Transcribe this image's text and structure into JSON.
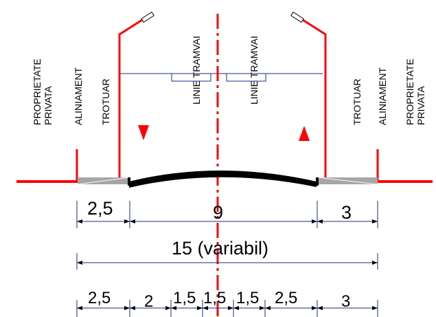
{
  "colors": {
    "red": "#ff0000",
    "road": "#000000",
    "sidewalk": "#a6a6a6",
    "line": "#1a2a8a",
    "background": "#ffffff"
  },
  "left_labels": {
    "proprietate": "PROPRIETATE",
    "privata": "PRIVATA",
    "aliniament": "ALINIAMENT",
    "trotuar": "TROTUAR"
  },
  "right_labels": {
    "proprietate": "PROPRIETATE",
    "privata": "PRIVATA",
    "aliniament": "ALINIAMENT",
    "trotuar": "TROTUAR"
  },
  "tram_labels": {
    "left": "LINIE TRAMVAI",
    "right": "LINIE TRAMVAI"
  },
  "dims_row1": {
    "left": "2,5",
    "center": "9",
    "right": "3"
  },
  "dims_row2": {
    "total": "15 (variabil)"
  },
  "dims_row3": [
    "2,5",
    "2",
    "1,5",
    "1,5",
    "1,5",
    "2,5",
    "3"
  ]
}
